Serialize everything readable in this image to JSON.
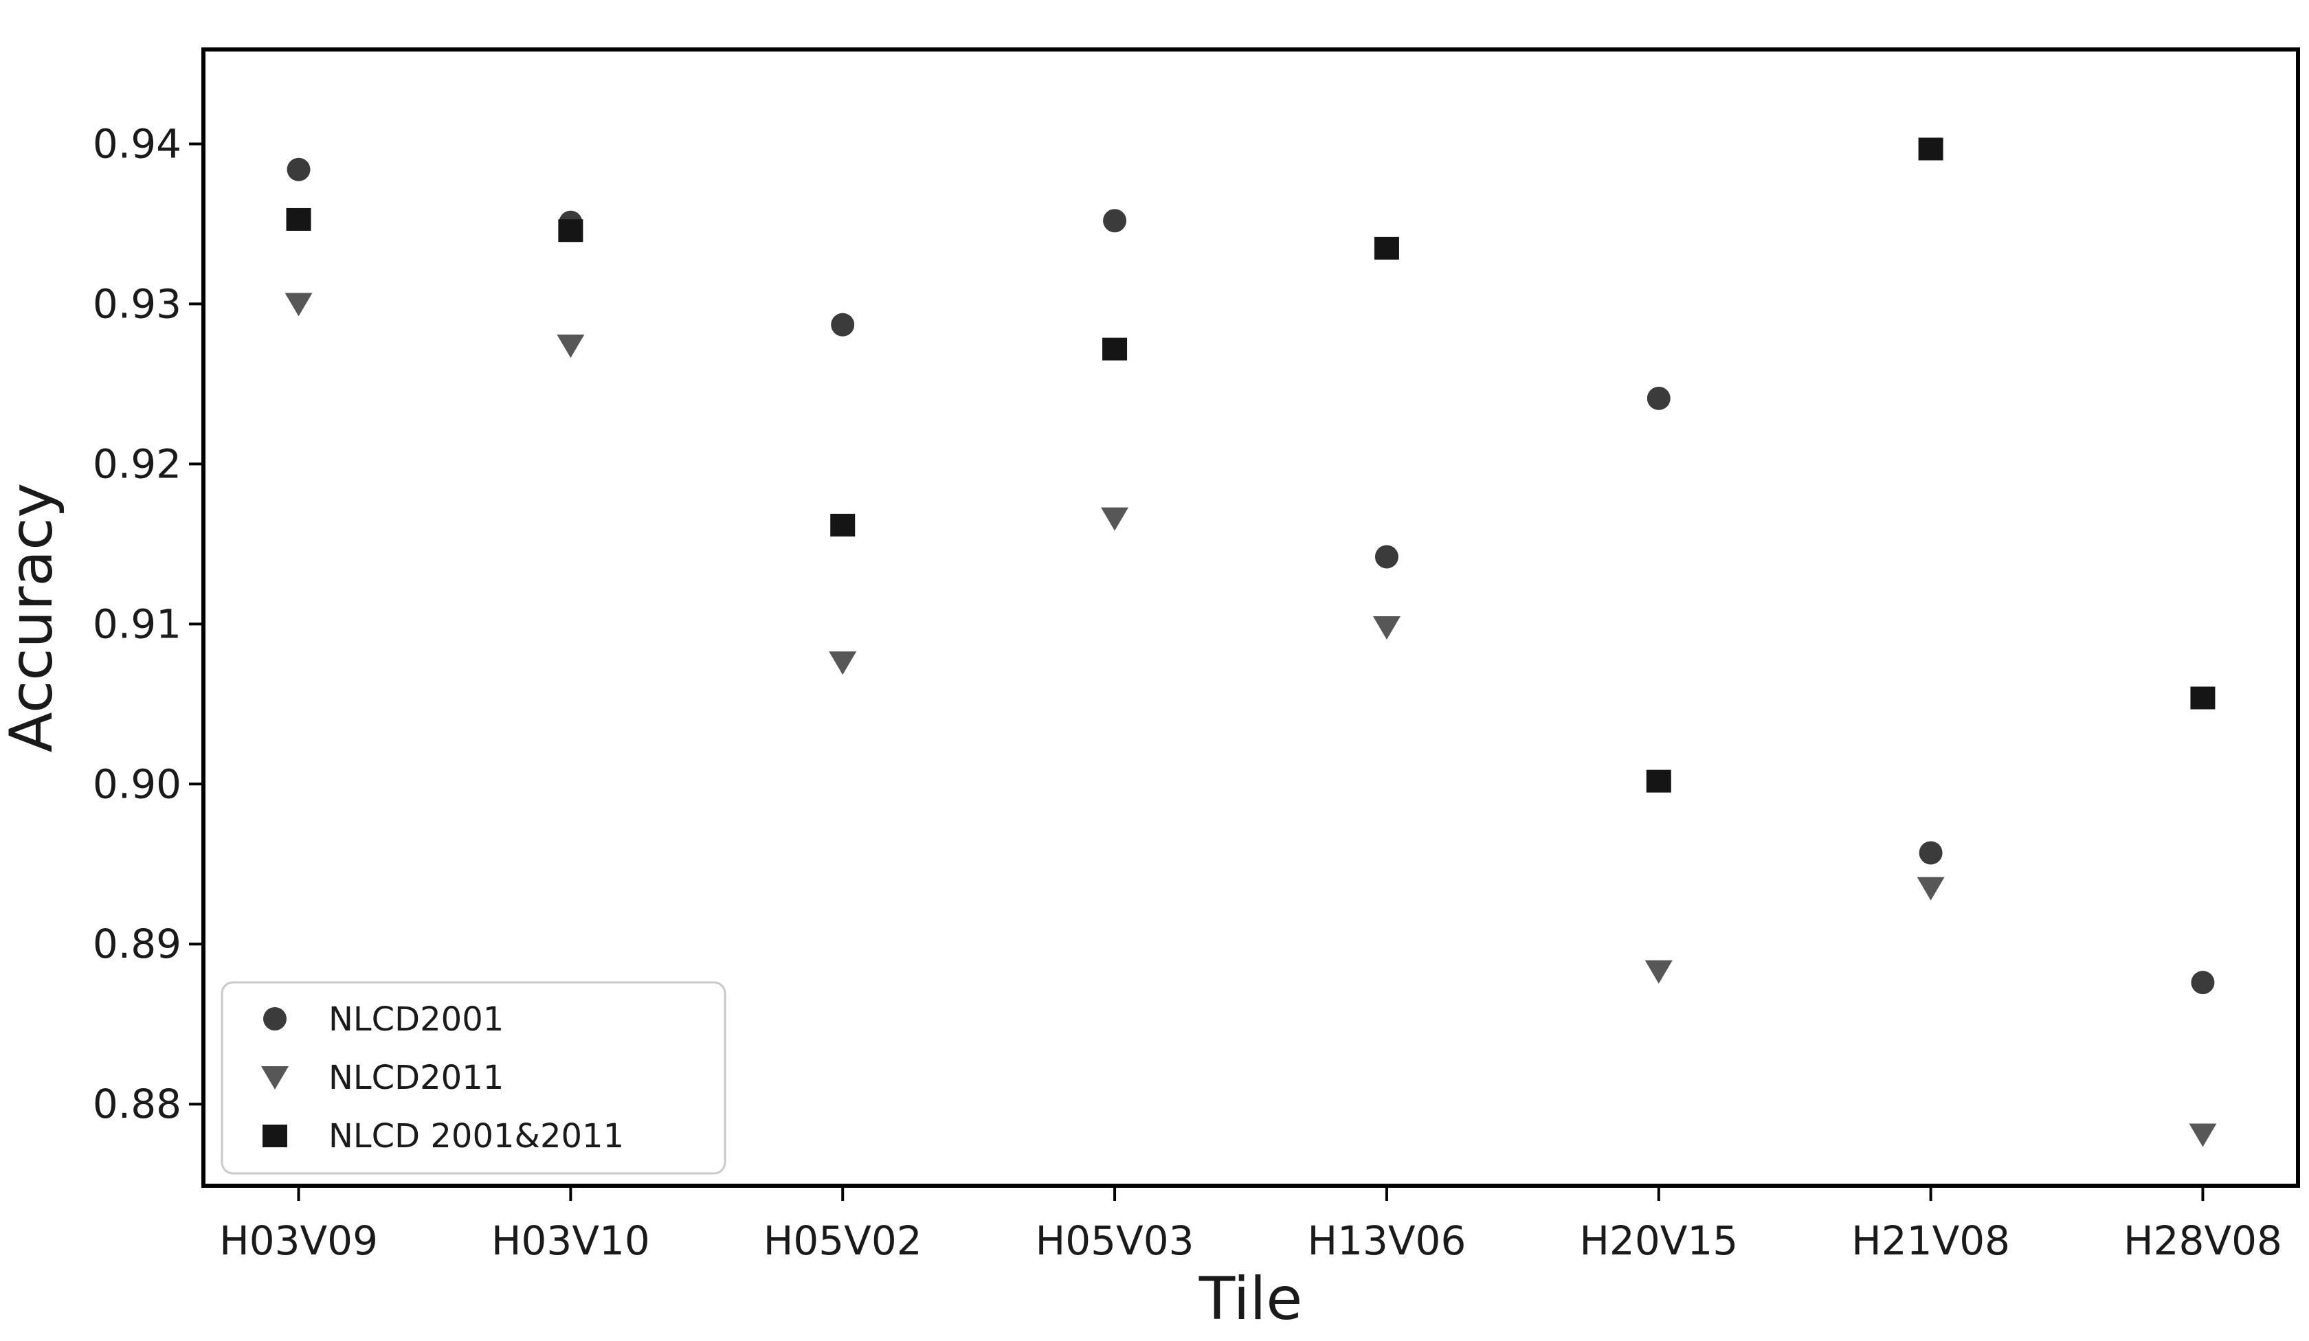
{
  "figure": {
    "background": "#ffffff",
    "text_color": "#1a1a1a",
    "axis_color": "#000000"
  },
  "chart_data": {
    "type": "scatter",
    "title": "",
    "xlabel": "Tile",
    "ylabel": "Accuracy",
    "grid": false,
    "legend_position": "lower left",
    "categories": [
      "H03V09",
      "H03V10",
      "H05V02",
      "H05V03",
      "H13V06",
      "H20V15",
      "H21V08",
      "H28V08"
    ],
    "series": [
      {
        "name": "NLCD2001",
        "marker": "circle",
        "color": "#3b3b3b",
        "values": [
          0.9384,
          0.9351,
          0.9287,
          0.9352,
          0.9142,
          0.9241,
          0.8957,
          0.8876
        ]
      },
      {
        "name": "NLCD2011",
        "marker": "triangle-down",
        "color": "#575757",
        "values": [
          0.93,
          0.9274,
          0.9076,
          0.9166,
          0.9098,
          0.8883,
          0.8935,
          0.8781
        ]
      },
      {
        "name": "NLCD 2001&2011",
        "marker": "square",
        "color": "#151515",
        "values": [
          0.9353,
          0.9346,
          0.9162,
          0.9272,
          0.9335,
          0.9002,
          0.9397,
          0.9054
        ]
      }
    ],
    "yticks": [
      0.88,
      0.89,
      0.9,
      0.91,
      0.92,
      0.93,
      0.94
    ],
    "ytick_labels": [
      "0.88",
      "0.89",
      "0.90",
      "0.91",
      "0.92",
      "0.93",
      "0.94"
    ],
    "ylim": [
      0.8749,
      0.9459
    ],
    "x_margin_units": 0.35
  }
}
